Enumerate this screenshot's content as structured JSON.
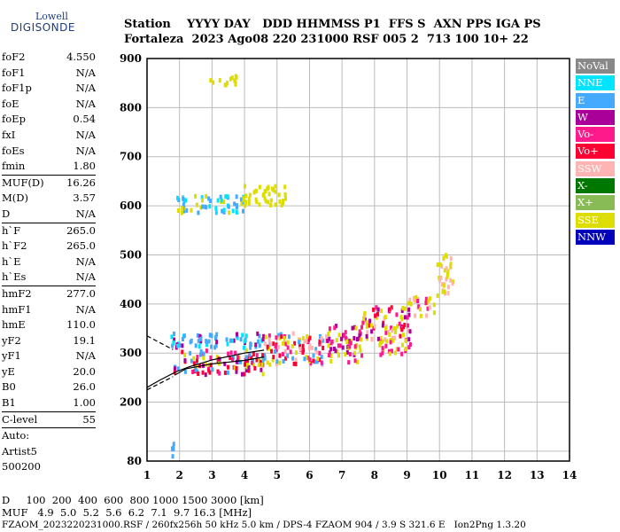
{
  "logo": {
    "top": "Lowell",
    "bottom": "DIGISONDE"
  },
  "header": {
    "line1": "Station    YYYY DAY   DDD HHMMSS P1  FFS S  AXN PPS IGA PS",
    "line2": "Fortaleza  2023 Ago08 220 231000 RSF 005 2  713 100 10+ 22"
  },
  "params": [
    {
      "name": "foF2",
      "value": "4.550"
    },
    {
      "name": "foF1",
      "value": "N/A"
    },
    {
      "name": "foF1p",
      "value": "N/A"
    },
    {
      "name": "foE",
      "value": "N/A"
    },
    {
      "name": "foEp",
      "value": "0.54"
    },
    {
      "name": "fxI",
      "value": "N/A"
    },
    {
      "name": "foEs",
      "value": "N/A"
    },
    {
      "name": "fmin",
      "value": "1.80",
      "sep": true
    },
    {
      "name": "MUF(D)",
      "value": "16.26"
    },
    {
      "name": "M(D)",
      "value": "3.57"
    },
    {
      "name": "D",
      "value": "N/A",
      "sep": true
    },
    {
      "name": "h`F",
      "value": "265.0"
    },
    {
      "name": "h`F2",
      "value": "265.0"
    },
    {
      "name": "h`E",
      "value": "N/A"
    },
    {
      "name": "h`Es",
      "value": "N/A",
      "sep": true
    },
    {
      "name": "hmF2",
      "value": "277.0"
    },
    {
      "name": "hmF1",
      "value": "N/A"
    },
    {
      "name": "hmE",
      "value": "110.0"
    },
    {
      "name": "yF2",
      "value": "19.1"
    },
    {
      "name": "yF1",
      "value": "N/A"
    },
    {
      "name": "yE",
      "value": "20.0"
    },
    {
      "name": "B0",
      "value": "26.0"
    },
    {
      "name": "B1",
      "value": "1.00",
      "sep": true
    },
    {
      "name": "C-level",
      "value": "55",
      "sep": true
    },
    {
      "name": "Auto:",
      "value": ""
    },
    {
      "name": "Artist5",
      "value": ""
    },
    {
      "name": "500200",
      "value": ""
    }
  ],
  "legend": [
    {
      "label": "NoVal",
      "color": "#888888"
    },
    {
      "label": "NNE",
      "color": "#00e5ff"
    },
    {
      "label": "E",
      "color": "#44aaff"
    },
    {
      "label": "W",
      "color": "#aa0099"
    },
    {
      "label": "Vo-",
      "color": "#ff1a8c"
    },
    {
      "label": "Vo+",
      "color": "#ff0033"
    },
    {
      "label": "SSW",
      "color": "#ffb3b3"
    },
    {
      "label": "X-",
      "color": "#007700"
    },
    {
      "label": "X+",
      "color": "#88bb55"
    },
    {
      "label": "SSE",
      "color": "#dddd00"
    },
    {
      "label": "NNW",
      "color": "#0000bb"
    }
  ],
  "bottom": {
    "line1": "D     100  200  400  600  800 1000 1500 3000 [km]",
    "line2": "MUF   4.9  5.0  5.2  5.6  6.2  7.1  9.7 16.3 [MHz]",
    "line3": "FZAOM_2023220231000.RSF / 260fx256h 50 kHz 5.0 km / DPS-4 FZAOM 904 / 3.9 S 321.6 E   Ion2Png 1.3.20"
  },
  "chart_data": {
    "type": "scatter",
    "xlim": [
      1,
      14
    ],
    "ylim": [
      80,
      900
    ],
    "x_ticks": [
      1,
      2,
      3,
      4,
      5,
      6,
      7,
      8,
      9,
      10,
      11,
      12,
      13,
      14
    ],
    "y_ticks": [
      100,
      200,
      300,
      400,
      500,
      600,
      700,
      800,
      900
    ],
    "y_tick_labels": [
      "",
      "200",
      "300",
      "400",
      "500",
      "600",
      "700",
      "800",
      "900"
    ],
    "y_min_label": "80",
    "grid": true,
    "clusters": [
      {
        "x": [
          1.8,
          4.6
        ],
        "y": [
          260,
          310
        ],
        "colors": [
          "#ff0033",
          "#ff1a8c",
          "#dddd00",
          "#aa0099",
          "#44aaff",
          "#ff0033"
        ]
      },
      {
        "x": [
          1.7,
          4.6
        ],
        "y": [
          315,
          345
        ],
        "colors": [
          "#44aaff",
          "#00e5ff",
          "#44aaff",
          "#aa0099"
        ]
      },
      {
        "x": [
          4.5,
          6.5
        ],
        "y": [
          280,
          345
        ],
        "colors": [
          "#dddd00",
          "#ff1a8c",
          "#ff0033",
          "#44aaff",
          "#ffb3b3"
        ]
      },
      {
        "x": [
          6.5,
          7.6
        ],
        "y": [
          285,
          360
        ],
        "colors": [
          "#dddd00",
          "#ff1a8c",
          "#aa0099"
        ]
      },
      {
        "x": [
          7.6,
          9.1
        ],
        "y": [
          330,
          400
        ],
        "colors": [
          "#dddd00",
          "#ff1a8c",
          "#aa0099",
          "#ff0033",
          "#ffb3b3"
        ]
      },
      {
        "x": [
          8.0,
          9.1
        ],
        "y": [
          300,
          330
        ],
        "colors": [
          "#dddd00",
          "#ff1a8c"
        ]
      },
      {
        "x": [
          9.0,
          9.8
        ],
        "y": [
          380,
          420
        ],
        "colors": [
          "#ffb3b3",
          "#ff1a8c",
          "#dddd00"
        ]
      },
      {
        "x": [
          9.9,
          10.4
        ],
        "y": [
          420,
          505
        ],
        "colors": [
          "#dddd00",
          "#ffb3b3"
        ]
      },
      {
        "x": [
          1.8,
          4.0
        ],
        "y": [
          590,
          625
        ],
        "colors": [
          "#44aaff",
          "#00e5ff",
          "#dddd00"
        ]
      },
      {
        "x": [
          3.9,
          5.3
        ],
        "y": [
          605,
          645
        ],
        "colors": [
          "#dddd00"
        ]
      },
      {
        "x": [
          2.9,
          3.8
        ],
        "y": [
          850,
          870
        ],
        "colors": [
          "#dddd00"
        ]
      },
      {
        "x": [
          1.7,
          1.8
        ],
        "y": [
          90,
          130
        ],
        "colors": [
          "#44aaff"
        ]
      }
    ],
    "trace_lines": [
      {
        "x": [
          1.85,
          2.2,
          3.0,
          4.0,
          4.6
        ],
        "y": [
          255,
          268,
          278,
          285,
          292
        ]
      },
      {
        "x": [
          1.0,
          1.4,
          1.9,
          2.3,
          3.0,
          4.0,
          4.6
        ],
        "y": [
          230,
          245,
          262,
          272,
          286,
          300,
          306
        ]
      }
    ],
    "dashed_lines": [
      {
        "x": [
          1.0,
          1.8
        ],
        "y": [
          335,
          307
        ]
      },
      {
        "x": [
          1.0,
          1.8
        ],
        "y": [
          225,
          252
        ]
      }
    ]
  }
}
